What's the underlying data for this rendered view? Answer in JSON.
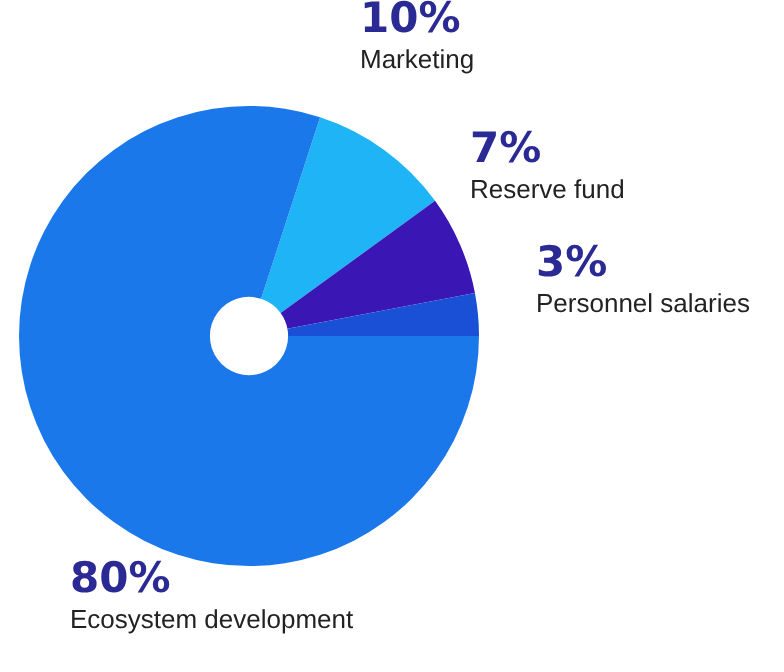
{
  "chart_data": {
    "type": "donut",
    "categories": [
      "Marketing",
      "Reserve fund",
      "Personnel salaries",
      "Ecosystem development"
    ],
    "values": [
      10,
      7,
      3,
      80
    ],
    "value_labels": [
      "10%",
      "7%",
      "3%",
      "80%"
    ],
    "colors": [
      "#1eb4f5",
      "#3a16b4",
      "#1a50d6",
      "#1a78ea"
    ],
    "legend": false
  }
}
